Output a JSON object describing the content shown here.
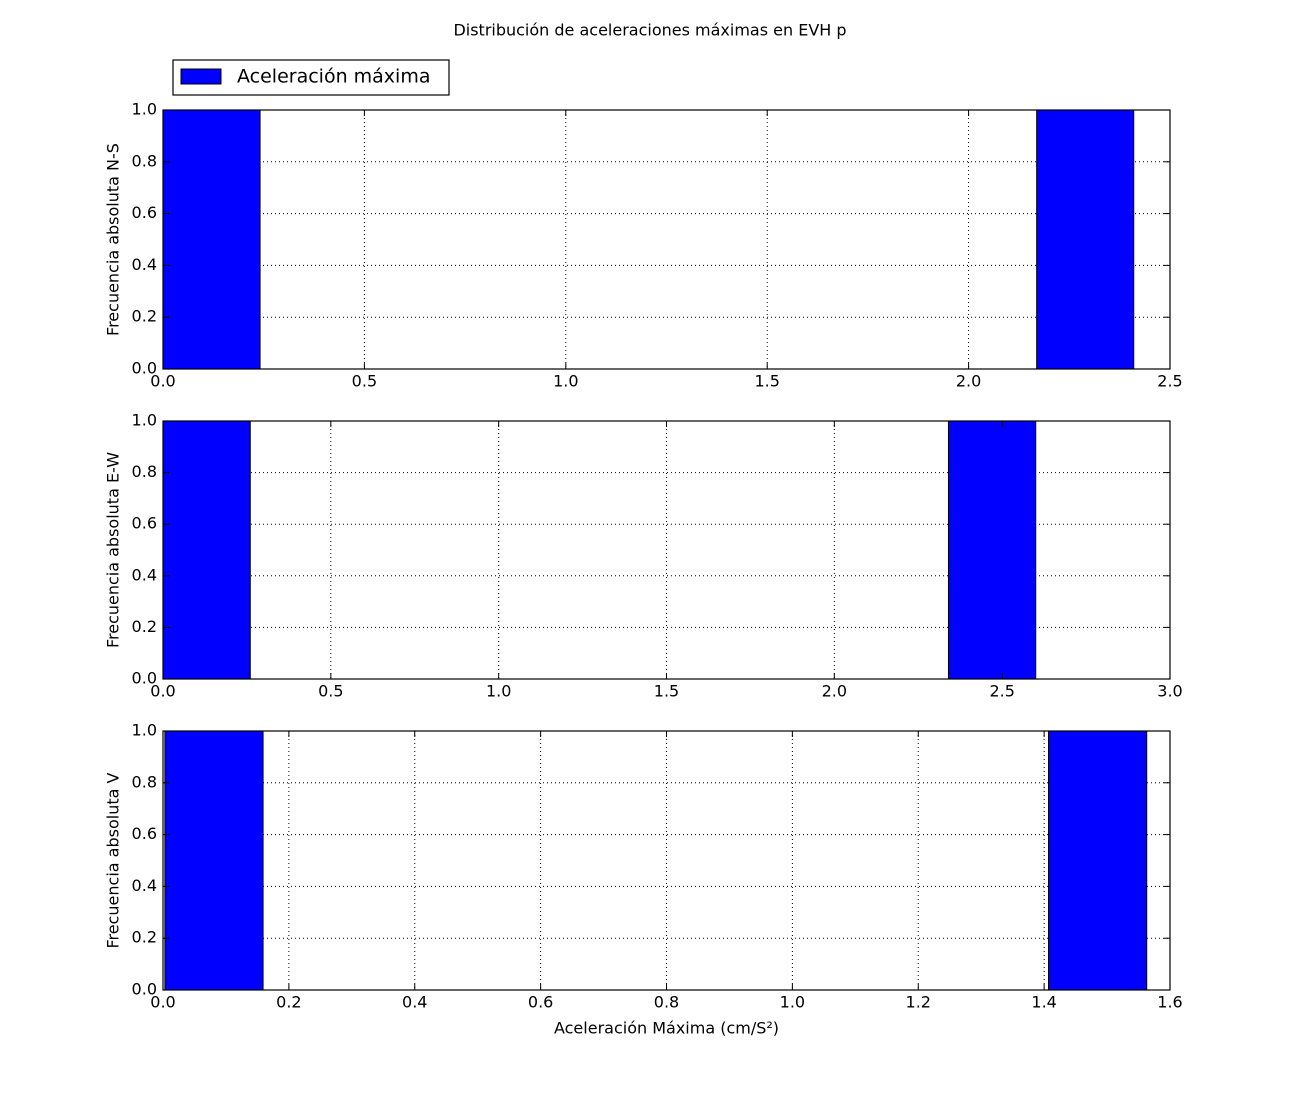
{
  "title": "Distribución de aceleraciones máximas en EVH p",
  "chart_data": [
    {
      "type": "histogram",
      "ylabel": "Frecuencia absoluta N-S",
      "legend": "Aceleración máxima",
      "color": "#0000ff",
      "grid": true,
      "bins": [
        0,
        0.241,
        0.482,
        0.723,
        0.964,
        1.205,
        1.446,
        1.687,
        1.928,
        2.169,
        2.41
      ],
      "values": [
        1,
        0,
        0,
        0,
        0,
        0,
        0,
        0,
        0,
        1
      ],
      "xlim": [
        0,
        2.5
      ],
      "ylim": [
        0,
        1
      ],
      "xticks": [
        {
          "value": 0,
          "label": "0.0"
        },
        0.5,
        {
          "value": 1,
          "label": "1.0"
        },
        1.5,
        {
          "value": 2,
          "label": "2.0"
        },
        2.5
      ],
      "yticks": [
        {
          "value": 0,
          "label": "0.0"
        },
        0.2,
        0.4,
        0.6,
        0.8,
        {
          "value": 1,
          "label": "1.0"
        }
      ]
    },
    {
      "type": "histogram",
      "ylabel": "Frecuencia absoluta E-W",
      "color": "#0000ff",
      "grid": true,
      "bins": [
        0,
        0.26,
        0.52,
        0.78,
        1.04,
        1.3,
        1.56,
        1.82,
        2.08,
        2.34,
        2.6
      ],
      "values": [
        1,
        0,
        0,
        0,
        0,
        0,
        0,
        0,
        0,
        1
      ],
      "xlim": [
        0,
        3
      ],
      "ylim": [
        0,
        1
      ],
      "xticks": [
        {
          "value": 0,
          "label": "0.0"
        },
        0.5,
        {
          "value": 1,
          "label": "1.0"
        },
        1.5,
        {
          "value": 2,
          "label": "2.0"
        },
        2.5,
        {
          "value": 3,
          "label": "3.0"
        }
      ],
      "yticks": [
        {
          "value": 0,
          "label": "0.0"
        },
        0.2,
        0.4,
        0.6,
        0.8,
        {
          "value": 1,
          "label": "1.0"
        }
      ]
    },
    {
      "type": "histogram",
      "ylabel": "Frecuencia absoluta V",
      "xlabel": "Aceleración Máxima (cm/S²)",
      "color": "#0000ff",
      "grid": true,
      "bins": [
        0.003,
        0.159,
        0.315,
        0.471,
        0.627,
        0.783,
        0.939,
        1.095,
        1.251,
        1.407,
        1.563
      ],
      "values": [
        1,
        0,
        0,
        0,
        0,
        0,
        0,
        0,
        0,
        1
      ],
      "xlim": [
        0,
        1.6
      ],
      "ylim": [
        0,
        1
      ],
      "xticks": [
        {
          "value": 0,
          "label": "0.0"
        },
        0.2,
        0.4,
        0.6,
        0.8,
        {
          "value": 1,
          "label": "1.0"
        },
        1.2,
        1.4,
        1.6
      ],
      "yticks": [
        {
          "value": 0,
          "label": "0.0"
        },
        0.2,
        0.4,
        0.6,
        0.8,
        {
          "value": 1,
          "label": "1.0"
        }
      ]
    }
  ]
}
